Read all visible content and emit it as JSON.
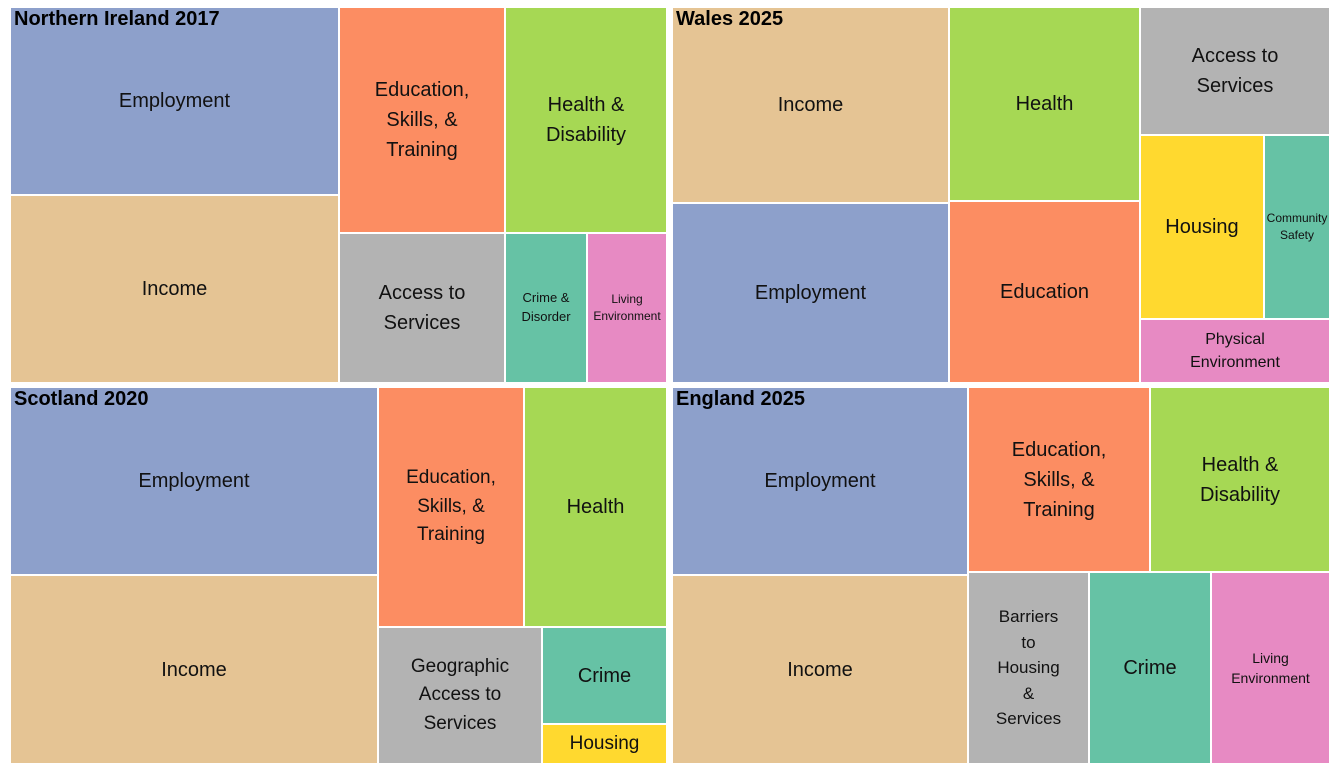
{
  "chart_data": [
    {
      "type": "treemap",
      "title": "Northern Ireland 2017",
      "tiles": [
        {
          "label": "Employment",
          "color": "#8DA0CB"
        },
        {
          "label": "Income",
          "color": "#E5C494"
        },
        {
          "label": "Education,\nSkills, &\nTraining",
          "color": "#FC8D62"
        },
        {
          "label": "Health &\nDisability",
          "color": "#A6D854"
        },
        {
          "label": "Access to\nServices",
          "color": "#B3B3B3"
        },
        {
          "label": "Crime &\nDisorder",
          "color": "#66C2A5"
        },
        {
          "label": "Living\nEnvironment",
          "color": "#E78AC3"
        }
      ]
    },
    {
      "type": "treemap",
      "title": "Wales 2025",
      "tiles": [
        {
          "label": "Income",
          "color": "#E5C494"
        },
        {
          "label": "Employment",
          "color": "#8DA0CB"
        },
        {
          "label": "Health",
          "color": "#A6D854"
        },
        {
          "label": "Education",
          "color": "#FC8D62"
        },
        {
          "label": "Access to\nServices",
          "color": "#B3B3B3"
        },
        {
          "label": "Housing",
          "color": "#FFD92F"
        },
        {
          "label": "Community\nSafety",
          "color": "#66C2A5"
        },
        {
          "label": "Physical\nEnvironment",
          "color": "#E78AC3"
        }
      ]
    },
    {
      "type": "treemap",
      "title": "Scotland 2020",
      "tiles": [
        {
          "label": "Employment",
          "color": "#8DA0CB"
        },
        {
          "label": "Income",
          "color": "#E5C494"
        },
        {
          "label": "Education,\nSkills, &\nTraining",
          "color": "#FC8D62"
        },
        {
          "label": "Health",
          "color": "#A6D854"
        },
        {
          "label": "Geographic\nAccess to\nServices",
          "color": "#B3B3B3"
        },
        {
          "label": "Crime",
          "color": "#66C2A5"
        },
        {
          "label": "Housing",
          "color": "#FFD92F"
        }
      ]
    },
    {
      "type": "treemap",
      "title": "England 2025",
      "tiles": [
        {
          "label": "Employment",
          "color": "#8DA0CB"
        },
        {
          "label": "Income",
          "color": "#E5C494"
        },
        {
          "label": "Education,\nSkills, &\nTraining",
          "color": "#FC8D62"
        },
        {
          "label": "Health &\nDisability",
          "color": "#A6D854"
        },
        {
          "label": "Barriers\nto\nHousing\n&\nServices",
          "color": "#B3B3B3"
        },
        {
          "label": "Crime",
          "color": "#66C2A5"
        },
        {
          "label": "Living\nEnvironment",
          "color": "#E78AC3"
        }
      ]
    }
  ]
}
